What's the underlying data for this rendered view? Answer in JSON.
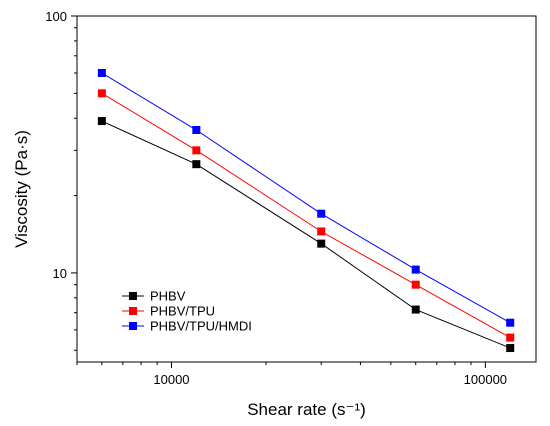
{
  "chart_data": {
    "type": "line",
    "title": "",
    "xlabel": "Shear rate (s⁻¹)",
    "ylabel": "Viscosity (Pa·s)",
    "x_scale": "log",
    "y_scale": "log",
    "xlim": [
      5000,
      145000
    ],
    "ylim": [
      4.5,
      100
    ],
    "x_tick_labels": [
      "10000",
      "100000"
    ],
    "y_tick_labels": [
      "10",
      "100"
    ],
    "grid": false,
    "legend_position": "bottom-left",
    "x": [
      6000,
      12000,
      30000,
      60000,
      120000
    ],
    "series": [
      {
        "name": "PHBV",
        "color": "#000000",
        "values": [
          39,
          26.5,
          13,
          7.2,
          5.1
        ]
      },
      {
        "name": "PHBV/TPU",
        "color": "#ff0000",
        "values": [
          50,
          30,
          14.5,
          9,
          5.6
        ]
      },
      {
        "name": "PHBV/TPU/HMDI",
        "color": "#0000ff",
        "values": [
          60,
          36,
          17,
          10.3,
          6.4
        ]
      }
    ]
  }
}
